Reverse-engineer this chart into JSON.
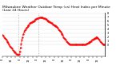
{
  "title1": "Milwaukee Weather Outdoor Temp (vs) Heat Index per Minute",
  "title2": "(Last 24 Hours)",
  "line_color": "#ff0000",
  "line_style": "--",
  "line_width": 0.6,
  "marker": ".",
  "marker_size": 1.2,
  "background_color": "#ffffff",
  "grid_color": "#cccccc",
  "vline_color": "#999999",
  "vline_style": ":",
  "ylim": [
    43,
    88
  ],
  "ytick_labels": [
    "8",
    "7",
    "6",
    "5",
    "4",
    "3",
    "2",
    "1",
    "0"
  ],
  "ytick_values": [
    87,
    83,
    79,
    75,
    71,
    67,
    63,
    59,
    55
  ],
  "vline_positions": [
    22,
    50
  ],
  "y_profile": [
    65,
    64,
    63,
    62,
    61,
    60,
    59,
    58,
    57,
    55,
    54,
    53,
    52,
    51,
    50,
    49,
    48,
    47,
    47,
    46,
    46,
    45,
    45,
    46,
    48,
    52,
    56,
    60,
    63,
    66,
    68,
    70,
    71,
    72,
    73,
    74,
    75,
    76,
    77,
    77,
    78,
    78,
    79,
    79,
    80,
    80,
    81,
    81,
    82,
    82,
    82,
    83,
    83,
    83,
    83,
    83,
    83,
    82,
    82,
    82,
    81,
    81,
    80,
    80,
    79,
    79,
    78,
    78,
    77,
    77,
    76,
    76,
    75,
    75,
    74,
    74,
    73,
    72,
    71,
    70,
    69,
    68,
    67,
    66,
    65,
    63,
    62,
    61,
    60,
    59,
    58,
    57,
    56,
    56,
    55,
    55,
    55,
    55,
    55,
    55,
    55,
    55,
    55,
    55,
    55,
    55,
    55,
    55,
    55,
    55,
    55,
    55,
    55,
    55,
    55,
    55,
    55,
    56,
    56,
    57,
    57,
    58,
    58,
    59,
    59,
    60,
    60,
    61,
    61,
    62,
    62,
    63,
    63,
    62,
    61,
    60,
    59,
    58,
    57,
    56,
    55,
    55,
    55,
    55
  ],
  "num_xticks": 24,
  "title_fontsize": 3.2,
  "tick_fontsize": 2.5
}
